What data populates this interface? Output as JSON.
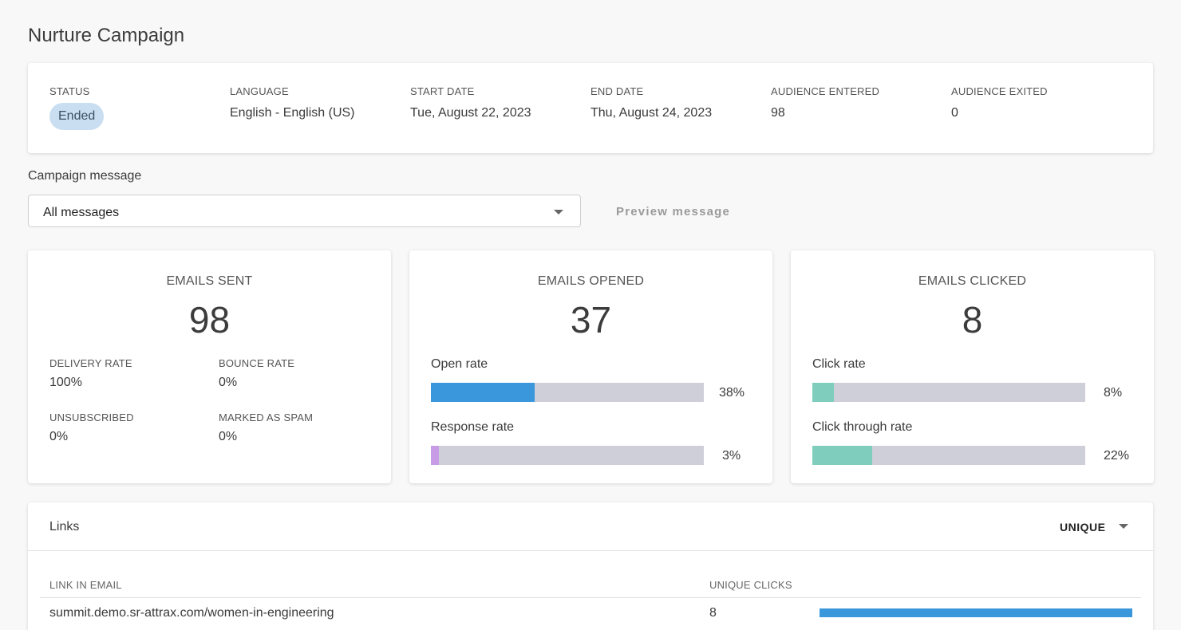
{
  "page": {
    "title": "Nurture Campaign"
  },
  "summary": {
    "status": {
      "label": "STATUS",
      "value": "Ended"
    },
    "language": {
      "label": "LANGUAGE",
      "value": "English - English (US)"
    },
    "start_date": {
      "label": "START DATE",
      "value": "Tue, August 22, 2023"
    },
    "end_date": {
      "label": "END DATE",
      "value": "Thu, August 24, 2023"
    },
    "audience_entered": {
      "label": "AUDIENCE ENTERED",
      "value": "98"
    },
    "audience_exited": {
      "label": "AUDIENCE EXITED",
      "value": "0"
    }
  },
  "campaign_message": {
    "label": "Campaign message",
    "selected": "All messages",
    "icon": "chevron-down-icon",
    "preview_label": "Preview message"
  },
  "emails_sent": {
    "title": "EMAILS SENT",
    "count": "98",
    "metrics": [
      {
        "label": "DELIVERY RATE",
        "value": "100%"
      },
      {
        "label": "BOUNCE RATE",
        "value": "0%"
      },
      {
        "label": "UNSUBSCRIBED",
        "value": "0%"
      },
      {
        "label": "MARKED AS SPAM",
        "value": "0%"
      }
    ]
  },
  "emails_opened": {
    "title": "EMAILS OPENED",
    "count": "37",
    "rates": [
      {
        "label": "Open rate",
        "value": "38%",
        "fraction": 0.38,
        "color": "#3a97dc"
      },
      {
        "label": "Response rate",
        "value": "3%",
        "fraction": 0.03,
        "color": "#c89be6"
      }
    ]
  },
  "emails_clicked": {
    "title": "EMAILS CLICKED",
    "count": "8",
    "rates": [
      {
        "label": "Click rate",
        "value": "8%",
        "fraction": 0.08,
        "color": "#7fcdbd"
      },
      {
        "label": "Click through rate",
        "value": "22%",
        "fraction": 0.22,
        "color": "#7fcdbd"
      }
    ]
  },
  "links": {
    "title": "Links",
    "mode": "UNIQUE",
    "columns": {
      "link": "LINK IN EMAIL",
      "clicks": "UNIQUE CLICKS"
    },
    "rows": [
      {
        "link": "summit.demo.sr-attrax.com/women-in-engineering",
        "clicks": "8",
        "fraction": 1.0,
        "color": "#3b97dc"
      }
    ]
  }
}
